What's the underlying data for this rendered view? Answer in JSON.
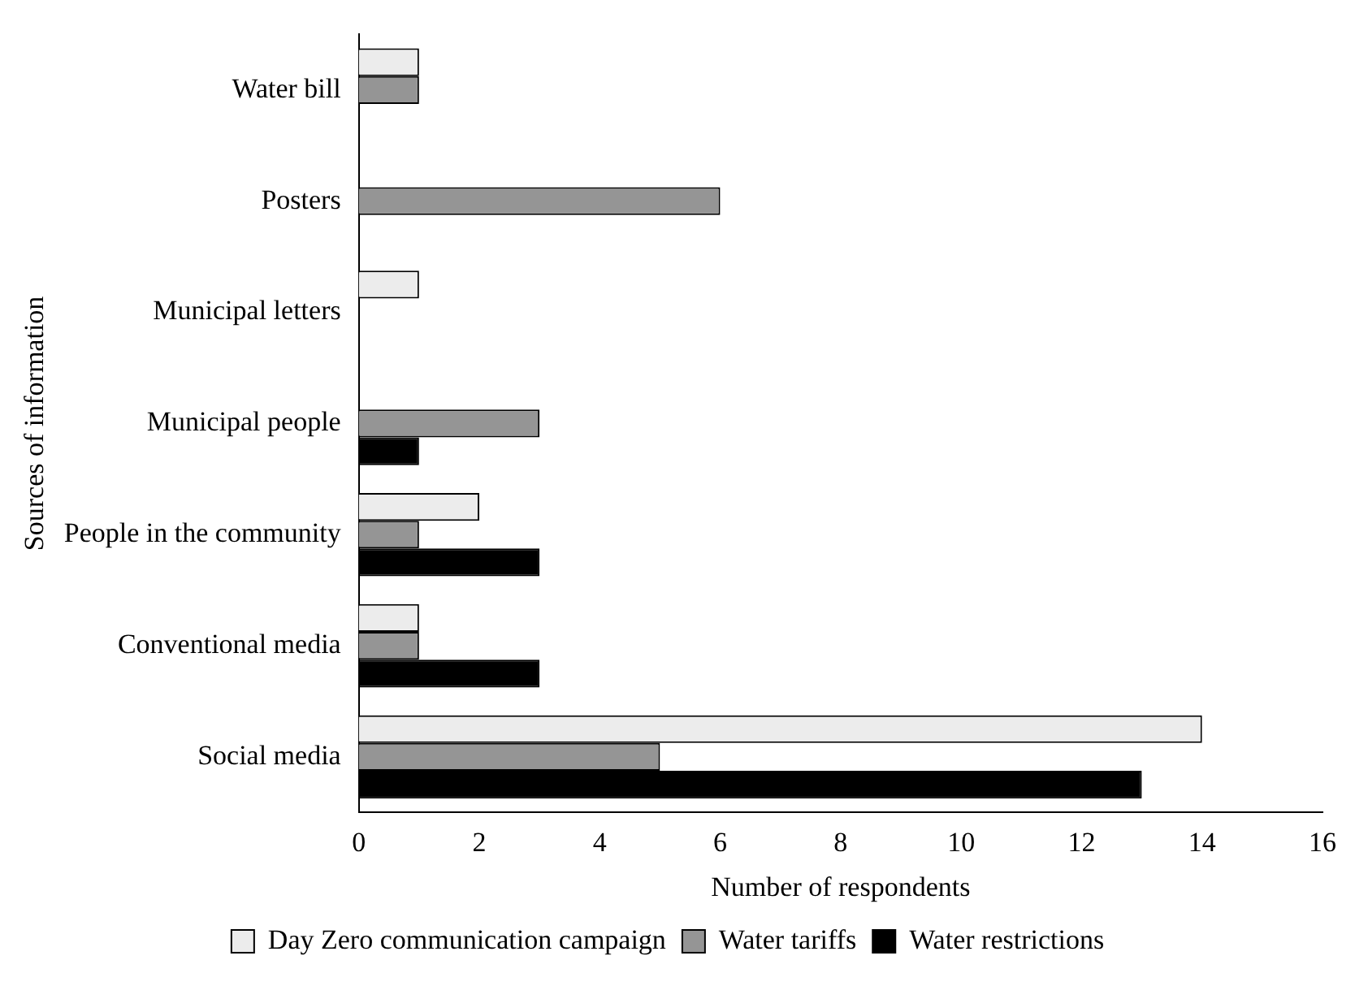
{
  "chart_data": {
    "type": "bar",
    "orientation": "horizontal",
    "xlabel": "Number of respondents",
    "ylabel": "Sources of information",
    "categories": [
      "Water bill",
      "Posters",
      "Municipal letters",
      "Municipal people",
      "People in the community",
      "Conventional media",
      "Social media"
    ],
    "series": [
      {
        "name": "Day Zero communication campaign",
        "color": "#ececec",
        "values": [
          1,
          0,
          1,
          0,
          2,
          1,
          14
        ]
      },
      {
        "name": "Water tariffs",
        "color": "#959595",
        "values": [
          1,
          6,
          0,
          3,
          1,
          1,
          5
        ]
      },
      {
        "name": "Water restrictions",
        "color": "#000000",
        "values": [
          0,
          0,
          0,
          1,
          3,
          3,
          13
        ]
      }
    ],
    "xlim": [
      0,
      16
    ],
    "xticks": [
      0,
      2,
      4,
      6,
      8,
      10,
      12,
      14,
      16
    ],
    "grid": false,
    "legend": "bottom"
  }
}
